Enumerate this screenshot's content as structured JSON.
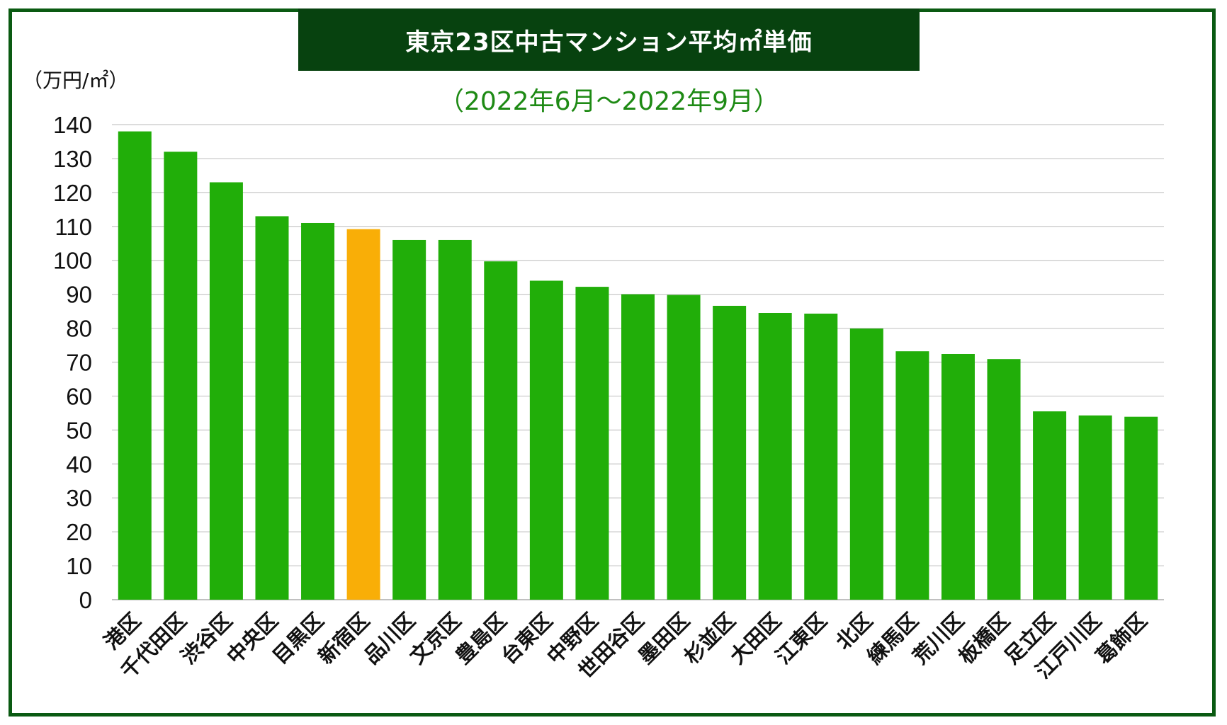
{
  "title": "東京23区中古マンション平均㎡単価",
  "subtitle": "（2022年6月〜2022年9月）",
  "colors": {
    "border": "#0a5a12",
    "title_bg": "#07420f",
    "subtitle": "#1e8a14",
    "bar": "#21ae09",
    "highlight": "#f9ae07",
    "grid": "#c8c8c8"
  },
  "chart_data": {
    "type": "bar",
    "title": "東京23区中古マンション平均㎡単価",
    "subtitle": "（2022年6月〜2022年9月）",
    "ylabel": "（万円/㎡）",
    "xlabel": "",
    "ylim": [
      0,
      140
    ],
    "yticks": [
      0,
      10,
      20,
      30,
      40,
      50,
      60,
      70,
      80,
      90,
      100,
      110,
      120,
      130,
      140
    ],
    "grid": true,
    "legend": "none",
    "highlight_category": "新宿区",
    "categories": [
      "港区",
      "千代田区",
      "渋谷区",
      "中央区",
      "目黒区",
      "新宿区",
      "品川区",
      "文京区",
      "豊島区",
      "台東区",
      "中野区",
      "世田谷区",
      "墨田区",
      "杉並区",
      "大田区",
      "江東区",
      "北区",
      "練馬区",
      "荒川区",
      "板橋区",
      "足立区",
      "江戸川区",
      "葛飾区"
    ],
    "values": [
      138,
      132,
      123,
      113,
      111,
      109.2,
      106,
      106,
      99.7,
      94,
      92.2,
      90,
      89.8,
      86.6,
      84.5,
      84.3,
      79.9,
      73.2,
      72.4,
      70.9,
      55.5,
      54.3,
      53.9
    ]
  }
}
